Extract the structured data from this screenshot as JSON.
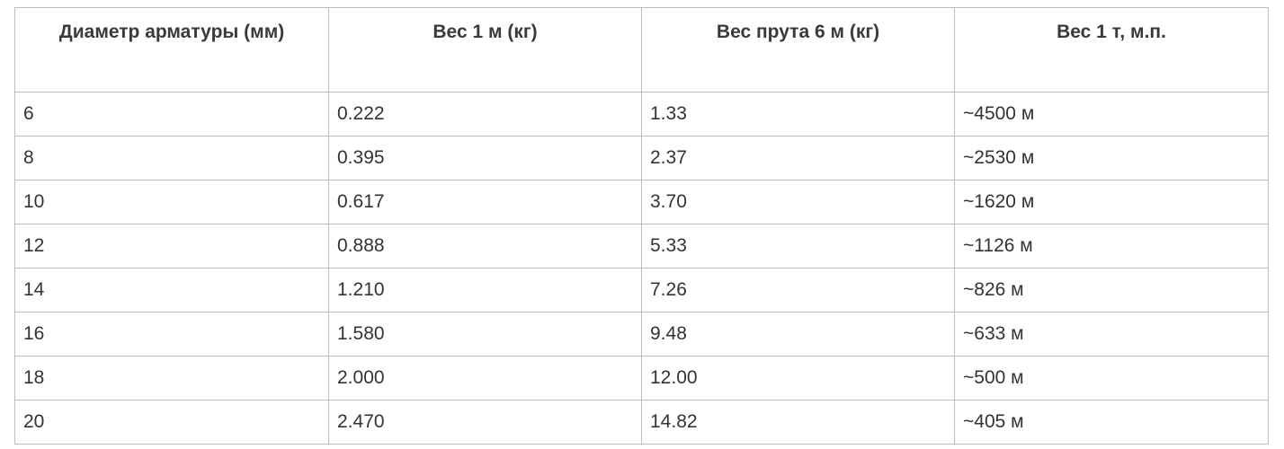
{
  "table": {
    "headers": [
      "Диаметр арматуры (мм)",
      "Вес 1 м (кг)",
      "Вес прута 6 м (кг)",
      "Вес 1 т, м.п."
    ],
    "rows": [
      [
        "6",
        "0.222",
        "1.33",
        "~4500 м"
      ],
      [
        "8",
        "0.395",
        "2.37",
        "~2530 м"
      ],
      [
        "10",
        "0.617",
        "3.70",
        "~1620 м"
      ],
      [
        "12",
        "0.888",
        "5.33",
        "~1126 м"
      ],
      [
        "14",
        "1.210",
        "7.26",
        "~826 м"
      ],
      [
        "16",
        "1.580",
        "9.48",
        "~633 м"
      ],
      [
        "18",
        "2.000",
        "12.00",
        "~500 м"
      ],
      [
        "20",
        "2.470",
        "14.82",
        "~405 м"
      ]
    ]
  }
}
